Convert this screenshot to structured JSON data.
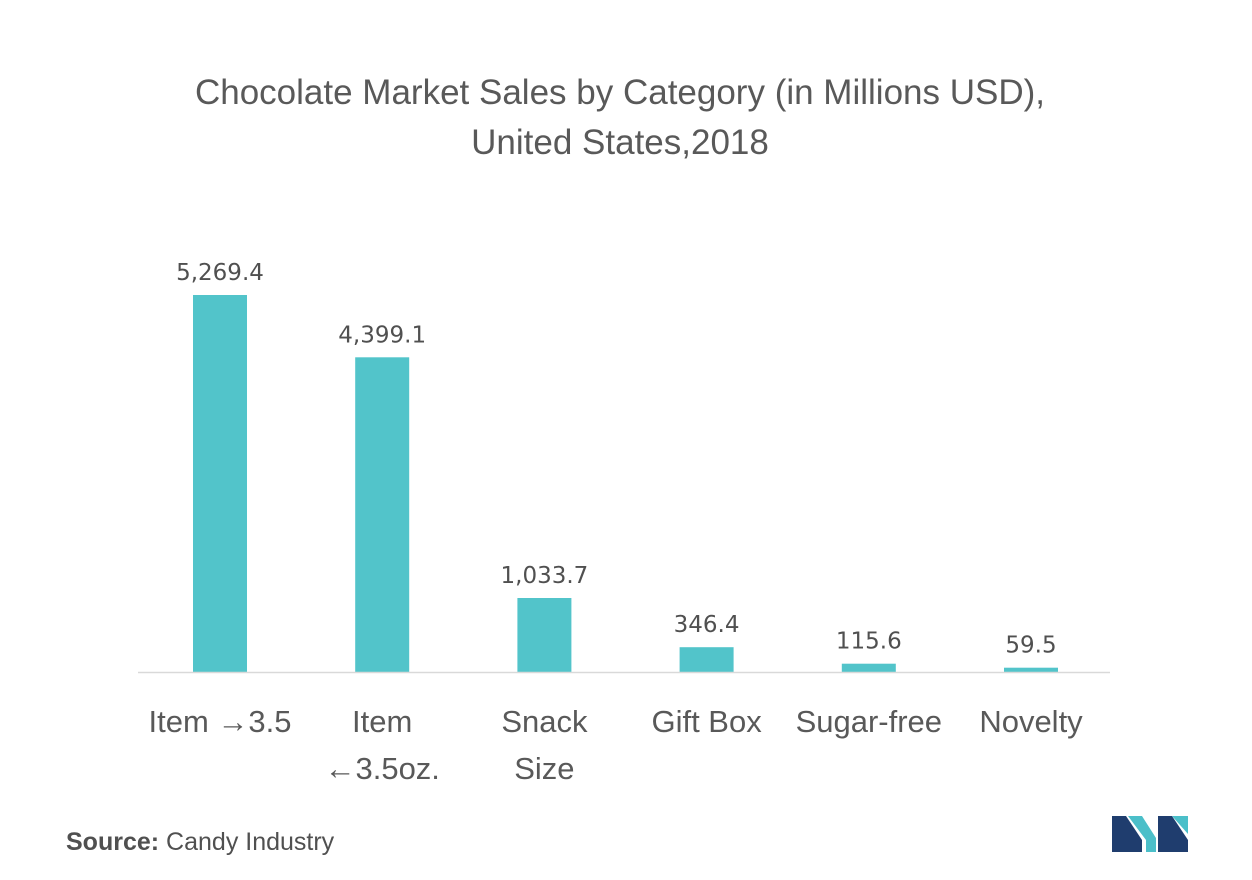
{
  "chart_data": {
    "type": "bar",
    "title": "Chocolate Market Sales by Category (in Millions USD),",
    "subtitle": "United States,2018",
    "categories": [
      [
        "Item →3.5"
      ],
      [
        "Item",
        "←3.5oz."
      ],
      [
        "Snack",
        "Size"
      ],
      [
        "Gift Box"
      ],
      [
        "Sugar-free"
      ],
      [
        "Novelty"
      ]
    ],
    "values": [
      5269.4,
      4399.1,
      1033.7,
      346.4,
      115.6,
      59.5
    ],
    "value_labels": [
      "5,269.4",
      "4,399.1",
      "1,033.7",
      "346.4",
      "115.6",
      "59.5"
    ],
    "ylim": [
      0,
      5269.4
    ],
    "grid": false,
    "legend": "none",
    "bar_color": "#52C4CA"
  },
  "footer": {
    "source_key": "Source:",
    "source_value": "Candy Industry"
  },
  "logo": {
    "icon": "mordor-intelligence-logo-icon",
    "colors": [
      "#1F3D6E",
      "#4BBFC9"
    ]
  }
}
